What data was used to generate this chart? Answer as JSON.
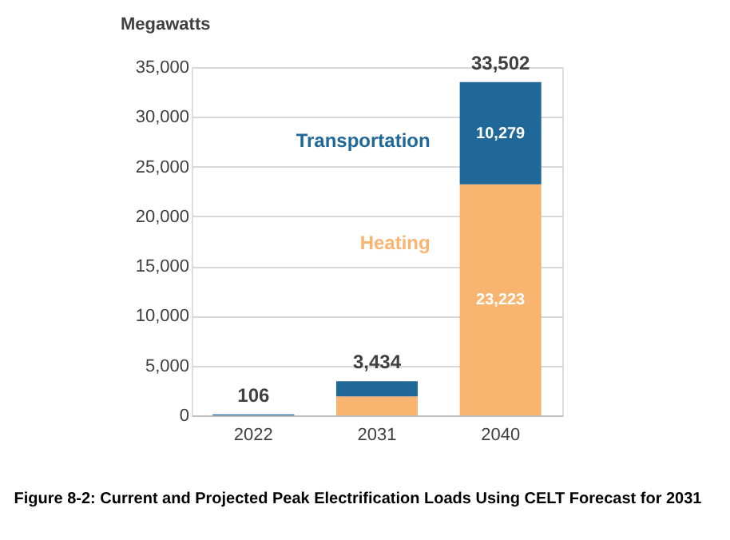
{
  "chart_data": {
    "type": "bar",
    "stacked": true,
    "ylabel": "Megawatts",
    "categories": [
      "2022",
      "2031",
      "2040"
    ],
    "series": [
      {
        "name": "Heating",
        "color": "#f9b470",
        "values": [
          null,
          1900,
          23223
        ],
        "value_labels": [
          null,
          null,
          "23,223"
        ]
      },
      {
        "name": "Transportation",
        "color": "#1f6898",
        "values": [
          106,
          1534,
          10279
        ],
        "value_labels": [
          null,
          null,
          "10,279"
        ]
      }
    ],
    "totals": [
      "106",
      "3,434",
      "33,502"
    ],
    "ylim": [
      0,
      35000
    ],
    "yticks": [
      0,
      {
        "value": 5000,
        "label": "5,000"
      },
      {
        "value": 10000,
        "label": "10,000"
      },
      {
        "value": 15000,
        "label": "15,000"
      },
      {
        "value": 20000,
        "label": "20,000"
      },
      {
        "value": 25000,
        "label": "25,000"
      },
      {
        "value": 30000,
        "label": "30,000"
      },
      {
        "value": 35000,
        "label": "35,000"
      }
    ],
    "grid": "y",
    "legend": false,
    "annotations": [
      "Figure 8-2: Current and Projected Peak Electrification Loads Using CELT Forecast for 2031"
    ]
  }
}
